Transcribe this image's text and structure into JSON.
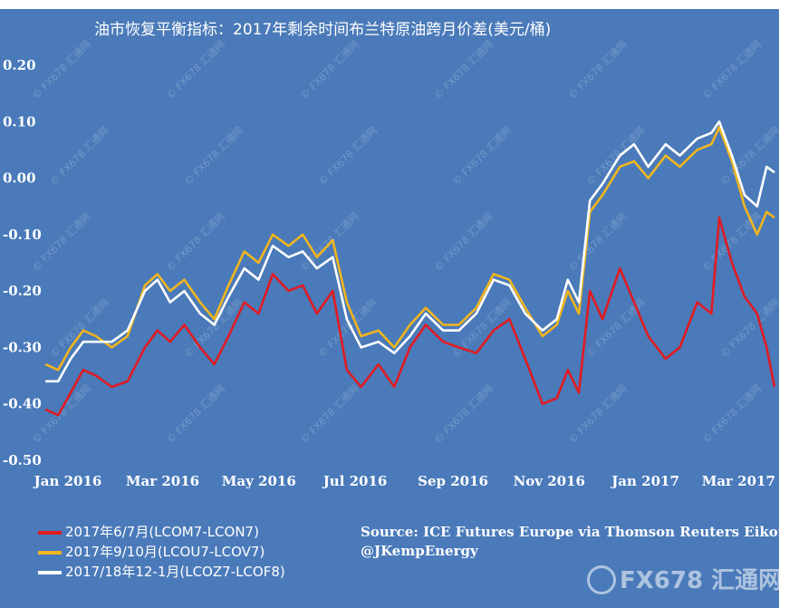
{
  "chart_data": {
    "type": "line",
    "title": "油市恢复平衡指标：2017年剩余时间布兰特原油跨月价差(美元/桶)",
    "ylim": [
      -0.5,
      0.2
    ],
    "yticks": [
      "0.20",
      "0.10",
      "0.00",
      "-0.10",
      "-0.20",
      "-0.30",
      "-0.40",
      "-0.50"
    ],
    "x_ticks": [
      "Jan 2016",
      "Mar 2016",
      "May 2016",
      "Jul 2016",
      "Sep 2016",
      "Nov 2016",
      "Jan 2017",
      "Mar 2017"
    ],
    "x_range": [
      "2016-01-01",
      "2017-04-10"
    ],
    "grid": false,
    "legend_position": "bottom-left",
    "series": [
      {
        "name": "2017年6/7月(LCOM7-LCON7)",
        "color": "#e11b22",
        "points": [
          [
            "2016-01-04",
            -0.41
          ],
          [
            "2016-01-12",
            -0.42
          ],
          [
            "2016-01-20",
            -0.38
          ],
          [
            "2016-01-28",
            -0.34
          ],
          [
            "2016-02-05",
            -0.35
          ],
          [
            "2016-02-15",
            -0.37
          ],
          [
            "2016-02-25",
            -0.36
          ],
          [
            "2016-03-07",
            -0.3
          ],
          [
            "2016-03-15",
            -0.27
          ],
          [
            "2016-03-23",
            -0.29
          ],
          [
            "2016-04-01",
            -0.26
          ],
          [
            "2016-04-11",
            -0.3
          ],
          [
            "2016-04-20",
            -0.33
          ],
          [
            "2016-04-29",
            -0.28
          ],
          [
            "2016-05-09",
            -0.22
          ],
          [
            "2016-05-18",
            -0.24
          ],
          [
            "2016-05-27",
            -0.17
          ],
          [
            "2016-06-06",
            -0.2
          ],
          [
            "2016-06-15",
            -0.19
          ],
          [
            "2016-06-24",
            -0.24
          ],
          [
            "2016-07-04",
            -0.2
          ],
          [
            "2016-07-13",
            -0.34
          ],
          [
            "2016-07-22",
            -0.37
          ],
          [
            "2016-08-02",
            -0.33
          ],
          [
            "2016-08-12",
            -0.37
          ],
          [
            "2016-08-22",
            -0.3
          ],
          [
            "2016-09-01",
            -0.26
          ],
          [
            "2016-09-12",
            -0.29
          ],
          [
            "2016-09-22",
            -0.3
          ],
          [
            "2016-10-03",
            -0.31
          ],
          [
            "2016-10-14",
            -0.27
          ],
          [
            "2016-10-24",
            -0.25
          ],
          [
            "2016-11-03",
            -0.32
          ],
          [
            "2016-11-14",
            -0.4
          ],
          [
            "2016-11-23",
            -0.39
          ],
          [
            "2016-11-30",
            -0.34
          ],
          [
            "2016-12-07",
            -0.38
          ],
          [
            "2016-12-14",
            -0.2
          ],
          [
            "2016-12-22",
            -0.25
          ],
          [
            "2017-01-02",
            -0.16
          ],
          [
            "2017-01-11",
            -0.22
          ],
          [
            "2017-01-20",
            -0.28
          ],
          [
            "2017-01-31",
            -0.32
          ],
          [
            "2017-02-09",
            -0.3
          ],
          [
            "2017-02-20",
            -0.22
          ],
          [
            "2017-03-01",
            -0.24
          ],
          [
            "2017-03-06",
            -0.07
          ],
          [
            "2017-03-14",
            -0.15
          ],
          [
            "2017-03-22",
            -0.21
          ],
          [
            "2017-03-30",
            -0.24
          ],
          [
            "2017-04-05",
            -0.3
          ],
          [
            "2017-04-10",
            -0.37
          ]
        ]
      },
      {
        "name": "2017年9/10月(LCOU7-LCOV7)",
        "color": "#f2b51d",
        "points": [
          [
            "2016-01-04",
            -0.33
          ],
          [
            "2016-01-12",
            -0.34
          ],
          [
            "2016-01-20",
            -0.3
          ],
          [
            "2016-01-28",
            -0.27
          ],
          [
            "2016-02-05",
            -0.28
          ],
          [
            "2016-02-15",
            -0.3
          ],
          [
            "2016-02-25",
            -0.28
          ],
          [
            "2016-03-07",
            -0.19
          ],
          [
            "2016-03-15",
            -0.17
          ],
          [
            "2016-03-23",
            -0.2
          ],
          [
            "2016-04-01",
            -0.18
          ],
          [
            "2016-04-11",
            -0.22
          ],
          [
            "2016-04-20",
            -0.25
          ],
          [
            "2016-04-29",
            -0.19
          ],
          [
            "2016-05-09",
            -0.13
          ],
          [
            "2016-05-18",
            -0.15
          ],
          [
            "2016-05-27",
            -0.1
          ],
          [
            "2016-06-06",
            -0.12
          ],
          [
            "2016-06-15",
            -0.1
          ],
          [
            "2016-06-24",
            -0.14
          ],
          [
            "2016-07-04",
            -0.11
          ],
          [
            "2016-07-13",
            -0.22
          ],
          [
            "2016-07-22",
            -0.28
          ],
          [
            "2016-08-02",
            -0.27
          ],
          [
            "2016-08-12",
            -0.3
          ],
          [
            "2016-08-22",
            -0.26
          ],
          [
            "2016-09-01",
            -0.23
          ],
          [
            "2016-09-12",
            -0.26
          ],
          [
            "2016-09-22",
            -0.26
          ],
          [
            "2016-10-03",
            -0.23
          ],
          [
            "2016-10-14",
            -0.17
          ],
          [
            "2016-10-24",
            -0.18
          ],
          [
            "2016-11-03",
            -0.23
          ],
          [
            "2016-11-14",
            -0.28
          ],
          [
            "2016-11-23",
            -0.26
          ],
          [
            "2016-11-30",
            -0.2
          ],
          [
            "2016-12-07",
            -0.24
          ],
          [
            "2016-12-14",
            -0.06
          ],
          [
            "2016-12-22",
            -0.03
          ],
          [
            "2017-01-02",
            0.02
          ],
          [
            "2017-01-11",
            0.03
          ],
          [
            "2017-01-20",
            0.0
          ],
          [
            "2017-01-31",
            0.04
          ],
          [
            "2017-02-09",
            0.02
          ],
          [
            "2017-02-20",
            0.05
          ],
          [
            "2017-03-01",
            0.06
          ],
          [
            "2017-03-06",
            0.09
          ],
          [
            "2017-03-14",
            0.03
          ],
          [
            "2017-03-22",
            -0.05
          ],
          [
            "2017-03-30",
            -0.1
          ],
          [
            "2017-04-05",
            -0.06
          ],
          [
            "2017-04-10",
            -0.07
          ]
        ]
      },
      {
        "name": "2017/18年12-1月(LCOZ7-LCOF8)",
        "color": "#ffffff",
        "points": [
          [
            "2016-01-04",
            -0.36
          ],
          [
            "2016-01-12",
            -0.36
          ],
          [
            "2016-01-20",
            -0.32
          ],
          [
            "2016-01-28",
            -0.29
          ],
          [
            "2016-02-05",
            -0.29
          ],
          [
            "2016-02-15",
            -0.29
          ],
          [
            "2016-02-25",
            -0.27
          ],
          [
            "2016-03-07",
            -0.2
          ],
          [
            "2016-03-15",
            -0.18
          ],
          [
            "2016-03-23",
            -0.22
          ],
          [
            "2016-04-01",
            -0.2
          ],
          [
            "2016-04-11",
            -0.24
          ],
          [
            "2016-04-20",
            -0.26
          ],
          [
            "2016-04-29",
            -0.21
          ],
          [
            "2016-05-09",
            -0.16
          ],
          [
            "2016-05-18",
            -0.18
          ],
          [
            "2016-05-27",
            -0.12
          ],
          [
            "2016-06-06",
            -0.14
          ],
          [
            "2016-06-15",
            -0.13
          ],
          [
            "2016-06-24",
            -0.16
          ],
          [
            "2016-07-04",
            -0.14
          ],
          [
            "2016-07-13",
            -0.25
          ],
          [
            "2016-07-22",
            -0.3
          ],
          [
            "2016-08-02",
            -0.29
          ],
          [
            "2016-08-12",
            -0.31
          ],
          [
            "2016-08-22",
            -0.28
          ],
          [
            "2016-09-01",
            -0.24
          ],
          [
            "2016-09-12",
            -0.27
          ],
          [
            "2016-09-22",
            -0.27
          ],
          [
            "2016-10-03",
            -0.24
          ],
          [
            "2016-10-14",
            -0.18
          ],
          [
            "2016-10-24",
            -0.19
          ],
          [
            "2016-11-03",
            -0.24
          ],
          [
            "2016-11-14",
            -0.27
          ],
          [
            "2016-11-23",
            -0.25
          ],
          [
            "2016-11-30",
            -0.18
          ],
          [
            "2016-12-07",
            -0.22
          ],
          [
            "2016-12-14",
            -0.04
          ],
          [
            "2016-12-22",
            -0.01
          ],
          [
            "2017-01-02",
            0.04
          ],
          [
            "2017-01-11",
            0.06
          ],
          [
            "2017-01-20",
            0.02
          ],
          [
            "2017-01-31",
            0.06
          ],
          [
            "2017-02-09",
            0.04
          ],
          [
            "2017-02-20",
            0.07
          ],
          [
            "2017-03-01",
            0.08
          ],
          [
            "2017-03-06",
            0.1
          ],
          [
            "2017-03-14",
            0.04
          ],
          [
            "2017-03-22",
            -0.03
          ],
          [
            "2017-03-30",
            -0.05
          ],
          [
            "2017-04-05",
            0.02
          ],
          [
            "2017-04-10",
            0.01
          ]
        ]
      }
    ]
  },
  "legend": [
    "2017年6/7月(LCOM7-LCON7)",
    "2017年9/10月(LCOU7-LCOV7)",
    "2017/18年12-1月(LCOZ7-LCOF8)"
  ],
  "source": {
    "line1": "Source: ICE Futures Europe via Thomson Reuters Eikon",
    "line2": "@JKempEnergy"
  },
  "watermark": {
    "logo_text": "FX678 汇通网",
    "tile_text": "© FX678 汇通网"
  }
}
